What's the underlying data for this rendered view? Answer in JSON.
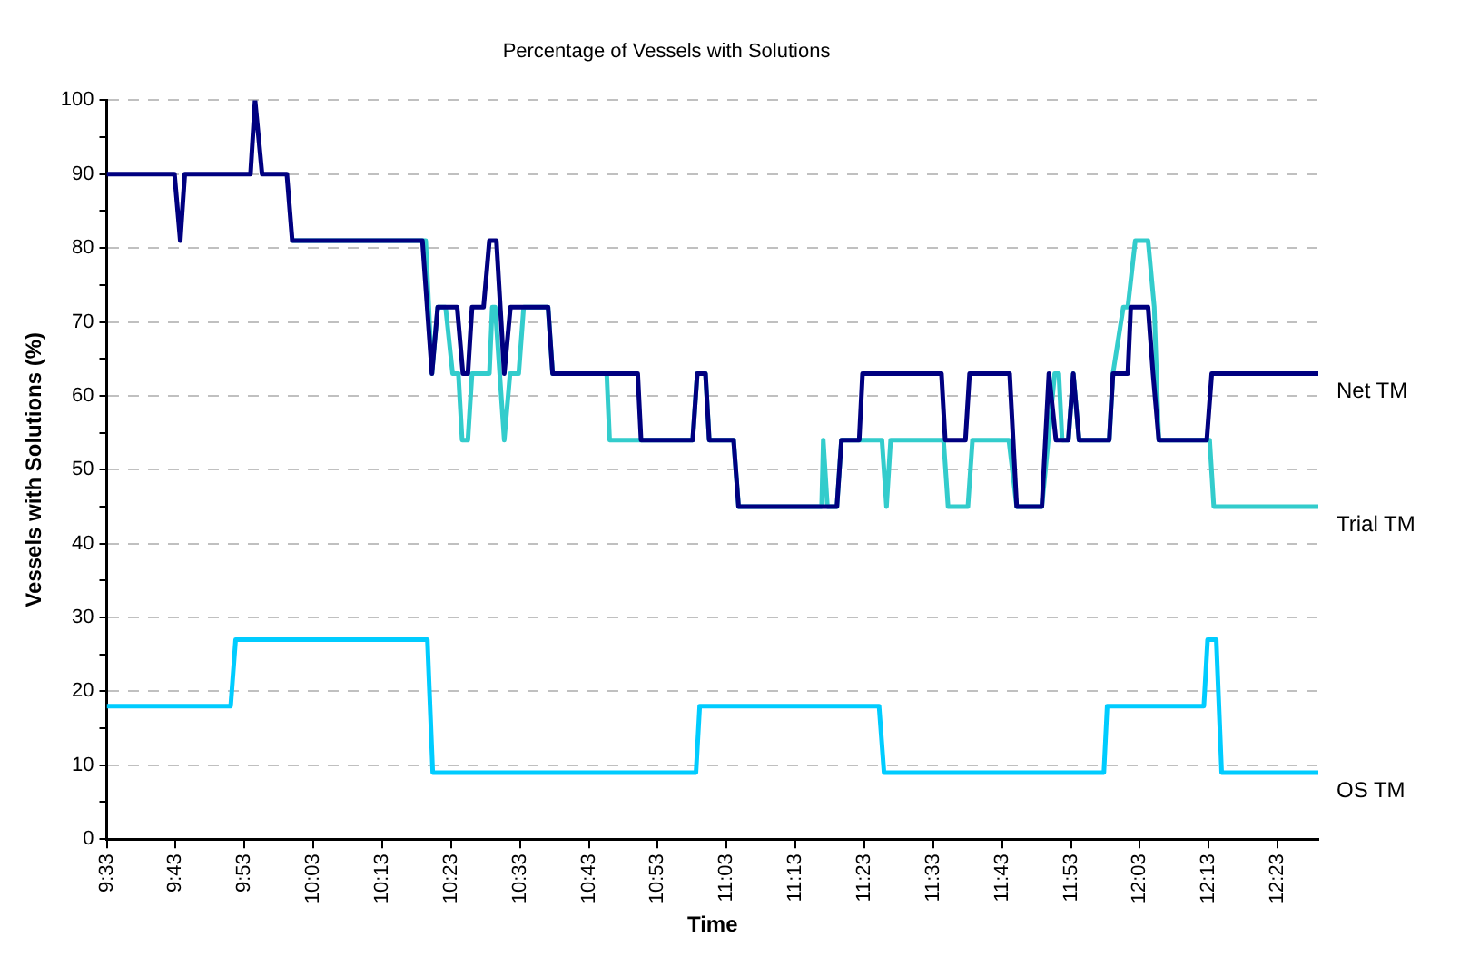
{
  "chart_data": {
    "type": "line",
    "title": "Percentage of Vessels with Solutions",
    "xlabel": "Time",
    "ylabel": "Vessels with Solutions (%)",
    "xlim": [
      9.55,
      12.482
    ],
    "xticks": [
      {
        "value": 9.55,
        "label": "9:33"
      },
      {
        "value": 9.7167,
        "label": "9:43"
      },
      {
        "value": 9.8833,
        "label": "9:53"
      },
      {
        "value": 10.05,
        "label": "10:03"
      },
      {
        "value": 10.2167,
        "label": "10:13"
      },
      {
        "value": 10.3833,
        "label": "10:23"
      },
      {
        "value": 10.55,
        "label": "10:33"
      },
      {
        "value": 10.7167,
        "label": "10:43"
      },
      {
        "value": 10.8833,
        "label": "10:53"
      },
      {
        "value": 11.05,
        "label": "11:03"
      },
      {
        "value": 11.2167,
        "label": "11:13"
      },
      {
        "value": 11.3833,
        "label": "11:23"
      },
      {
        "value": 11.55,
        "label": "11:33"
      },
      {
        "value": 11.7167,
        "label": "11:43"
      },
      {
        "value": 11.8833,
        "label": "11:53"
      },
      {
        "value": 12.05,
        "label": "12:03"
      },
      {
        "value": 12.2167,
        "label": "12:13"
      },
      {
        "value": 12.3833,
        "label": "12:23"
      }
    ],
    "ylim": [
      0,
      100
    ],
    "yticks": [
      0,
      {
        "value": 5,
        "label": null
      },
      10,
      {
        "value": 15,
        "label": null
      },
      20,
      {
        "value": 25,
        "label": null
      },
      30,
      {
        "value": 35,
        "label": null
      },
      40,
      {
        "value": 45,
        "label": null
      },
      50,
      {
        "value": 55,
        "label": null
      },
      60,
      {
        "value": 65,
        "label": null
      },
      70,
      {
        "value": 75,
        "label": null
      },
      80,
      {
        "value": 85,
        "label": null
      },
      90,
      {
        "value": 95,
        "label": null
      },
      100
    ],
    "grid": "y",
    "legend": false,
    "marker": "none",
    "line_style": "solid",
    "series": [
      {
        "name": "Net TM",
        "color": "#000080",
        "x": [
          9.55,
          9.714,
          9.728,
          9.739,
          9.898,
          9.909,
          9.926,
          9.986,
          9.999,
          10.314,
          10.337,
          10.351,
          10.398,
          10.412,
          10.424,
          10.434,
          10.462,
          10.476,
          10.493,
          10.512,
          10.527,
          10.618,
          10.629,
          10.835,
          10.843,
          10.968,
          10.979,
          10.999,
          11.008,
          11.067,
          11.079,
          11.317,
          11.328,
          11.371,
          11.379,
          11.57,
          11.579,
          11.628,
          11.638,
          11.735,
          11.752,
          11.813,
          11.83,
          11.847,
          11.877,
          11.889,
          11.903,
          11.976,
          11.985,
          12.021,
          12.028,
          12.07,
          12.082,
          12.096,
          12.212,
          12.224,
          12.482
        ],
        "values": [
          90,
          90,
          81,
          90,
          90,
          100,
          90,
          90,
          81,
          81,
          63,
          72,
          72,
          63,
          63,
          72,
          72,
          81,
          81,
          63,
          72,
          72,
          63,
          63,
          54,
          54,
          63,
          63,
          54,
          54,
          45,
          45,
          54,
          54,
          63,
          63,
          54,
          54,
          63,
          63,
          45,
          45,
          63,
          54,
          54,
          63,
          54,
          54,
          63,
          63,
          72,
          72,
          63,
          54,
          54,
          63,
          63
        ]
      },
      {
        "name": "Trial TM",
        "color": "#33cccc",
        "x": [
          9.999,
          10.322,
          10.337,
          10.351,
          10.37,
          10.387,
          10.401,
          10.41,
          10.424,
          10.434,
          10.476,
          10.483,
          10.49,
          10.512,
          10.526,
          10.547,
          10.559,
          10.618,
          10.629,
          10.76,
          10.767,
          10.968,
          10.979,
          10.999,
          11.008,
          11.067,
          11.079,
          11.28,
          11.284,
          11.294,
          11.317,
          11.328,
          11.426,
          11.437,
          11.447,
          11.575,
          11.586,
          11.634,
          11.645,
          11.733,
          11.752,
          11.813,
          11.844,
          11.854,
          11.862,
          11.877,
          11.889,
          11.903,
          11.976,
          11.985,
          12.01,
          12.021,
          12.039,
          12.07,
          12.085,
          12.096,
          12.219,
          12.229,
          12.482
        ],
        "values": [
          81,
          81,
          63,
          72,
          72,
          63,
          63,
          54,
          54,
          63,
          63,
          72,
          72,
          54,
          63,
          63,
          72,
          72,
          63,
          63,
          54,
          54,
          63,
          63,
          54,
          54,
          45,
          45,
          54,
          45,
          45,
          54,
          54,
          45,
          54,
          54,
          45,
          45,
          54,
          54,
          45,
          45,
          63,
          63,
          54,
          54,
          63,
          54,
          54,
          63,
          72,
          72,
          81,
          81,
          72,
          54,
          54,
          45,
          45
        ]
      },
      {
        "name": "OS TM",
        "color": "#00ccff",
        "x": [
          9.55,
          9.85,
          9.862,
          10.326,
          10.339,
          10.976,
          10.985,
          11.419,
          11.431,
          11.963,
          11.971,
          12.205,
          12.214,
          12.235,
          12.248,
          12.482
        ],
        "values": [
          18,
          18,
          27,
          27,
          9,
          9,
          18,
          18,
          9,
          9,
          18,
          18,
          27,
          27,
          9,
          9
        ]
      }
    ]
  }
}
